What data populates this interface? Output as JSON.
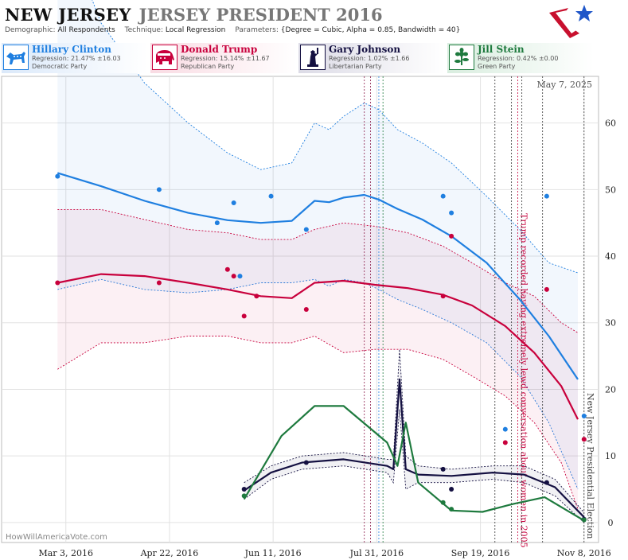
{
  "header": {
    "state": "NEW JERSEY",
    "race": "JERSEY PRESIDENT 2016"
  },
  "meta": {
    "demographic_label": "Demographic:",
    "demographic": "All Respondents",
    "technique_label": "Technique:",
    "technique": "Local Regression",
    "parameters_label": "Parameters:",
    "parameters": "{Degree = Cubic, Alpha = 0.85, Bandwidth = 40}"
  },
  "candidates": [
    {
      "name": "Hillary Clinton",
      "regression": "Regression: 21.47% ±16.03",
      "party": "Democratic Party",
      "color": "#1f7fe0",
      "icon": "donkey-icon"
    },
    {
      "name": "Donald Trump",
      "regression": "Regression: 15.14% ±11.67",
      "party": "Republican Party",
      "color": "#c8003c",
      "icon": "elephant-icon"
    },
    {
      "name": "Gary Johnson",
      "regression": "Regression: 1.02% ±1.66",
      "party": "Libertarian Party",
      "color": "#141041",
      "icon": "statue-of-liberty-icon"
    },
    {
      "name": "Jill Stein",
      "regression": "Regression: 0.42% ±0.00",
      "party": "Green Party",
      "color": "#1e7a3e",
      "icon": "flower-icon"
    }
  ],
  "watermark": "HowWillAmericaVote.com",
  "chart_data": {
    "type": "line",
    "date_label": "May 7, 2025",
    "xlim": [
      "2016-02-01",
      "2016-11-15"
    ],
    "ylim": [
      -3,
      67
    ],
    "x_ticks": [
      {
        "date": "2016-03-03",
        "label": "Mar 3, 2016"
      },
      {
        "date": "2016-04-22",
        "label": "Apr 22, 2016"
      },
      {
        "date": "2016-06-11",
        "label": "Jun 11, 2016"
      },
      {
        "date": "2016-07-31",
        "label": "Jul 31, 2016"
      },
      {
        "date": "2016-09-19",
        "label": "Sep 19, 2016"
      },
      {
        "date": "2016-11-08",
        "label": "Nov 8, 2016"
      }
    ],
    "y_ticks": [
      0,
      10,
      20,
      30,
      40,
      50,
      60
    ],
    "events": [
      {
        "date": "2016-07-25",
        "color": "#8b1a4a",
        "label": ""
      },
      {
        "date": "2016-07-28",
        "color": "#8b1a4a",
        "label": ""
      },
      {
        "date": "2016-08-01",
        "color": "#1f7fe0",
        "label": ""
      },
      {
        "date": "2016-08-03",
        "color": "#1e7a3e",
        "label": ""
      },
      {
        "date": "2016-09-26",
        "color": "#333333",
        "label": ""
      },
      {
        "date": "2016-10-04",
        "color": "#333333",
        "label": ""
      },
      {
        "date": "2016-10-07",
        "color": "#c8003c",
        "label": "Trump recorded having extremely lewd conversation about women in 2005"
      },
      {
        "date": "2016-10-09",
        "color": "#333333",
        "label": ""
      },
      {
        "date": "2016-10-19",
        "color": "#333333",
        "label": ""
      },
      {
        "date": "2016-11-08",
        "color": "#333333",
        "label": "New Jersey Presidential Election"
      }
    ],
    "series": [
      {
        "name": "Hillary Clinton",
        "color": "#1f7fe0",
        "x": [
          "2016-02-28",
          "2016-03-20",
          "2016-04-10",
          "2016-05-01",
          "2016-05-20",
          "2016-06-05",
          "2016-06-20",
          "2016-07-01",
          "2016-07-08",
          "2016-07-15",
          "2016-07-25",
          "2016-08-01",
          "2016-08-10",
          "2016-08-22",
          "2016-09-05",
          "2016-09-22",
          "2016-10-08",
          "2016-10-22",
          "2016-11-05"
        ],
        "y": [
          52.5,
          50.5,
          48.3,
          46.5,
          45.4,
          45,
          45.3,
          48.3,
          48.1,
          48.8,
          49.2,
          48.5,
          47.1,
          45.5,
          43,
          39,
          33.5,
          28,
          21.5
        ],
        "upper": [
          92,
          75,
          66,
          60,
          55.5,
          53,
          54,
          60,
          59,
          61,
          63,
          62,
          59,
          57,
          54,
          49,
          44,
          39,
          37.5
        ],
        "lower": [
          35,
          36.5,
          35,
          34.5,
          35,
          36,
          36,
          36.5,
          35.5,
          36.5,
          36,
          35,
          33.5,
          32,
          30,
          27,
          22,
          15,
          5
        ],
        "points": {
          "x": [
            "2016-02-28",
            "2016-04-17",
            "2016-05-15",
            "2016-05-23",
            "2016-06-10",
            "2016-05-26",
            "2016-06-27",
            "2016-09-01",
            "2016-09-05",
            "2016-10-01",
            "2016-10-21",
            "2016-11-08"
          ],
          "y": [
            52,
            50,
            45,
            48,
            49,
            37,
            44,
            49,
            46.5,
            14,
            49,
            16
          ]
        }
      },
      {
        "name": "Donald Trump",
        "color": "#c8003c",
        "x": [
          "2016-02-28",
          "2016-03-20",
          "2016-04-10",
          "2016-05-01",
          "2016-05-20",
          "2016-06-05",
          "2016-06-20",
          "2016-07-01",
          "2016-07-15",
          "2016-07-30",
          "2016-08-15",
          "2016-09-01",
          "2016-09-15",
          "2016-10-01",
          "2016-10-15",
          "2016-10-28",
          "2016-11-05"
        ],
        "y": [
          36,
          37.3,
          37,
          36,
          35,
          34,
          33.7,
          36,
          36.3,
          35.7,
          35.2,
          34.2,
          32.6,
          29.5,
          25.5,
          20.5,
          15.5
        ],
        "upper": [
          47,
          47,
          45.5,
          44,
          43.5,
          42.5,
          42.5,
          44,
          45,
          44.5,
          43.5,
          41.5,
          39,
          36,
          34,
          30,
          28.5
        ],
        "lower": [
          23,
          27,
          27,
          28,
          28,
          27,
          27,
          28,
          25.5,
          26,
          26,
          24.5,
          22,
          19,
          15,
          9,
          2
        ],
        "points": {
          "x": [
            "2016-02-28",
            "2016-04-17",
            "2016-05-20",
            "2016-05-23",
            "2016-05-28",
            "2016-06-03",
            "2016-06-27",
            "2016-09-01",
            "2016-09-05",
            "2016-10-01",
            "2016-10-21",
            "2016-11-08"
          ],
          "y": [
            36,
            36,
            38,
            37,
            31,
            34,
            32,
            34,
            43,
            12,
            35,
            12.5
          ]
        }
      },
      {
        "name": "Gary Johnson",
        "color": "#141041",
        "x": [
          "2016-05-28",
          "2016-06-10",
          "2016-06-25",
          "2016-07-15",
          "2016-08-05",
          "2016-08-08",
          "2016-08-11",
          "2016-08-14",
          "2016-08-20",
          "2016-09-05",
          "2016-09-25",
          "2016-10-10",
          "2016-10-25",
          "2016-11-08"
        ],
        "y": [
          4.8,
          7.5,
          9,
          9.5,
          8.5,
          8,
          21.5,
          8,
          7.2,
          7,
          7.5,
          7.2,
          5.3,
          0.8
        ],
        "upper": [
          6,
          8.5,
          10,
          10.5,
          9.5,
          9.5,
          26,
          10,
          8.5,
          8,
          8.5,
          8.5,
          6.5,
          1.5
        ],
        "lower": [
          3.5,
          6.5,
          8,
          8.5,
          7.5,
          6,
          17,
          5,
          6,
          6,
          6.5,
          6,
          4,
          0
        ],
        "points": {
          "x": [
            "2016-05-28",
            "2016-06-27",
            "2016-09-01",
            "2016-09-05",
            "2016-10-21",
            "2016-11-08"
          ],
          "y": [
            5,
            9,
            8,
            5,
            6,
            0.5
          ]
        }
      },
      {
        "name": "Jill Stein",
        "color": "#1e7a3e",
        "x": [
          "2016-05-28",
          "2016-06-15",
          "2016-07-01",
          "2016-07-15",
          "2016-08-05",
          "2016-08-10",
          "2016-08-14",
          "2016-08-20",
          "2016-09-05",
          "2016-09-20",
          "2016-10-05",
          "2016-10-20",
          "2016-11-08"
        ],
        "y": [
          3.5,
          13,
          17.5,
          17.5,
          12,
          8.5,
          15,
          6,
          1.8,
          1.6,
          2.8,
          3.8,
          0.3
        ],
        "upper": [],
        "lower": [],
        "points": {
          "x": [
            "2016-05-28",
            "2016-09-01",
            "2016-09-05",
            "2016-11-08"
          ],
          "y": [
            4,
            3,
            2,
            0.4
          ]
        }
      }
    ]
  }
}
